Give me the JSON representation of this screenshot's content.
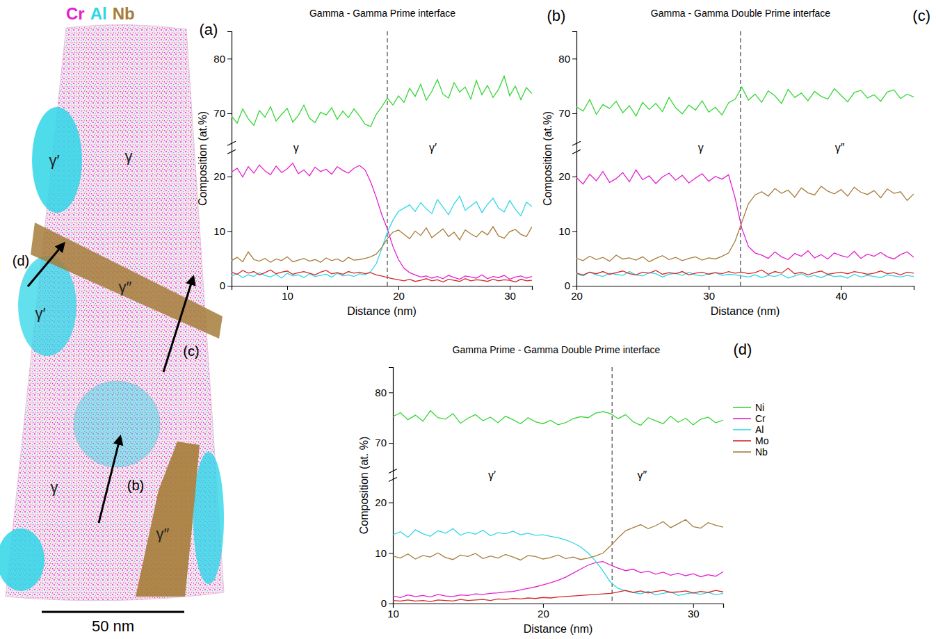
{
  "chart_data": [
    {
      "type": "line",
      "title": "Gamma - Gamma Prime interface",
      "panel": "(b)",
      "x_label": "Distance (nm)",
      "y_label": "Composition (at.%)",
      "xlim": [
        5,
        32
      ],
      "xticks": [
        10,
        20,
        30
      ],
      "ylim": [
        0,
        85
      ],
      "yticks": [
        0,
        10,
        20,
        70,
        80
      ],
      "ybreak": [
        24,
        65
      ],
      "interface": 19,
      "annotations": [
        {
          "text": "γ",
          "x": 10.8
        },
        {
          "text": "γ′",
          "x": 23.1
        }
      ],
      "x": [
        5,
        5.5,
        6,
        6.5,
        7,
        7.5,
        8,
        8.5,
        9,
        9.5,
        10,
        10.5,
        11,
        11.5,
        12,
        12.5,
        13,
        13.5,
        14,
        14.5,
        15,
        15.5,
        16,
        16.5,
        17,
        17.5,
        18,
        18.5,
        19,
        19.5,
        20,
        20.5,
        21,
        21.5,
        22,
        22.5,
        23,
        23.5,
        24,
        24.5,
        25,
        25.5,
        26,
        26.5,
        27,
        27.5,
        28,
        28.5,
        29,
        29.5,
        30,
        30.5,
        31,
        31.5,
        32
      ],
      "series": [
        {
          "color": "#36d636",
          "values": [
            69.5,
            68.2,
            70.8,
            69.0,
            67.8,
            70.5,
            69.3,
            71.2,
            68.6,
            69.8,
            70.9,
            68.4,
            69.6,
            71.5,
            69.1,
            68.3,
            70.2,
            69.7,
            71.0,
            68.9,
            70.4,
            69.2,
            70.8,
            69.5,
            68.0,
            67.6,
            69.8,
            71.2,
            72.8,
            71.5,
            73.2,
            72.0,
            74.6,
            73.1,
            75.3,
            72.4,
            74.0,
            76.2,
            73.5,
            72.8,
            75.6,
            73.9,
            74.8,
            72.6,
            76.0,
            73.4,
            75.1,
            72.9,
            74.4,
            76.8,
            73.2,
            75.0,
            72.5,
            74.7,
            73.6
          ]
        },
        {
          "color": "#e31fcf",
          "values": [
            20.8,
            21.5,
            19.9,
            21.8,
            20.6,
            22.1,
            21.0,
            20.3,
            21.9,
            20.7,
            21.4,
            22.4,
            20.5,
            21.2,
            20.1,
            21.7,
            20.9,
            21.3,
            20.4,
            21.8,
            21.1,
            20.6,
            21.5,
            22.0,
            21.2,
            19.0,
            16.2,
            13.0,
            10.4,
            7.2,
            4.8,
            3.2,
            2.4,
            2.0,
            1.6,
            1.8,
            1.4,
            1.7,
            1.3,
            1.9,
            1.5,
            1.2,
            1.8,
            1.6,
            1.4,
            2.0,
            1.3,
            1.7,
            1.5,
            1.9,
            1.2,
            1.6,
            1.8,
            1.4,
            1.7
          ]
        },
        {
          "color": "#2fd6e8",
          "values": [
            1.8,
            2.2,
            1.5,
            2.0,
            1.7,
            2.4,
            1.9,
            1.6,
            2.1,
            1.4,
            2.3,
            1.8,
            2.0,
            1.5,
            2.2,
            1.7,
            1.9,
            2.1,
            1.6,
            2.3,
            1.8,
            2.0,
            1.7,
            2.2,
            2.0,
            2.6,
            4.0,
            6.8,
            9.8,
            12.0,
            13.6,
            14.2,
            14.8,
            13.6,
            15.2,
            14.1,
            13.2,
            15.8,
            14.4,
            13.0,
            15.0,
            16.4,
            13.8,
            14.6,
            15.4,
            13.4,
            14.9,
            16.0,
            14.2,
            13.5,
            15.6,
            14.0,
            12.8,
            15.3,
            14.5
          ]
        },
        {
          "color": "#d62728",
          "values": [
            2.5,
            2.1,
            2.8,
            2.3,
            2.6,
            2.0,
            2.4,
            2.9,
            2.2,
            2.5,
            2.7,
            2.1,
            2.4,
            2.6,
            2.3,
            2.0,
            2.5,
            2.8,
            2.2,
            2.4,
            2.1,
            2.6,
            2.3,
            2.5,
            2.2,
            2.4,
            2.0,
            1.8,
            1.5,
            1.3,
            1.1,
            0.9,
            1.2,
            0.8,
            1.0,
            1.3,
            0.9,
            1.1,
            0.7,
            1.2,
            1.0,
            0.8,
            1.3,
            0.9,
            1.1,
            1.0,
            0.8,
            1.2,
            0.9,
            1.1,
            1.0,
            0.7,
            1.2,
            0.9,
            1.0
          ]
        },
        {
          "color": "#a67c39",
          "values": [
            4.6,
            5.2,
            4.4,
            6.2,
            4.8,
            4.5,
            5.0,
            4.3,
            4.9,
            4.6,
            5.3,
            4.4,
            4.7,
            5.0,
            4.5,
            4.8,
            4.3,
            5.1,
            4.6,
            4.9,
            4.4,
            5.2,
            4.7,
            4.8,
            5.0,
            5.3,
            5.8,
            7.0,
            8.6,
            9.8,
            10.2,
            9.4,
            8.6,
            10.0,
            9.2,
            10.6,
            8.8,
            9.6,
            10.4,
            9.0,
            9.8,
            8.4,
            10.2,
            9.5,
            8.9,
            10.0,
            9.3,
            10.8,
            9.1,
            8.7,
            9.9,
            10.3,
            9.4,
            9.0,
            10.8
          ]
        }
      ]
    },
    {
      "type": "line",
      "title": "Gamma - Gamma Double Prime interface",
      "panel": "(c)",
      "x_label": "Distance (nm)",
      "y_label": "Composition (at.%)",
      "xlim": [
        20,
        45.5
      ],
      "xticks": [
        20,
        30,
        40
      ],
      "ylim": [
        0,
        85
      ],
      "yticks": [
        0,
        10,
        20,
        70,
        80
      ],
      "ybreak": [
        24,
        65
      ],
      "interface": 32.4,
      "annotations": [
        {
          "text": "γ",
          "x": 29.4
        },
        {
          "text": "γ″",
          "x": 39.9
        }
      ],
      "x": [
        20,
        20.5,
        21,
        21.5,
        22,
        22.5,
        23,
        23.5,
        24,
        24.5,
        25,
        25.5,
        26,
        26.5,
        27,
        27.5,
        28,
        28.5,
        29,
        29.5,
        30,
        30.5,
        31,
        31.5,
        32,
        32.5,
        33,
        33.5,
        34,
        34.5,
        35,
        35.5,
        36,
        36.5,
        37,
        37.5,
        38,
        38.5,
        39,
        39.5,
        40,
        40.5,
        41,
        41.5,
        42,
        42.5,
        43,
        43.5,
        44,
        44.5,
        45,
        45.5
      ],
      "series": [
        {
          "color": "#36d636",
          "values": [
            71.2,
            70.4,
            72.5,
            69.8,
            71.6,
            70.9,
            72.2,
            70.1,
            71.4,
            69.5,
            72.0,
            70.7,
            71.8,
            70.3,
            72.9,
            71.0,
            69.9,
            71.5,
            70.6,
            72.3,
            70.2,
            71.1,
            69.7,
            71.9,
            72.6,
            74.8,
            72.4,
            73.5,
            72.0,
            74.1,
            73.2,
            71.8,
            74.4,
            72.9,
            73.7,
            72.3,
            74.0,
            73.1,
            72.6,
            74.5,
            73.3,
            72.1,
            73.8,
            74.2,
            72.8,
            73.4,
            72.2,
            73.9,
            74.3,
            72.7,
            73.5,
            73.0
          ]
        },
        {
          "color": "#e31fcf",
          "values": [
            19.8,
            18.6,
            20.4,
            19.2,
            20.9,
            18.9,
            19.6,
            20.7,
            19.0,
            21.2,
            19.4,
            20.1,
            18.7,
            19.9,
            20.6,
            19.3,
            20.2,
            18.8,
            19.7,
            20.5,
            19.1,
            20.0,
            19.5,
            20.3,
            16.0,
            10.5,
            7.2,
            6.0,
            5.6,
            5.0,
            6.2,
            5.3,
            4.8,
            5.9,
            5.4,
            6.4,
            5.1,
            5.7,
            4.9,
            6.0,
            5.5,
            5.2,
            6.3,
            5.0,
            5.8,
            5.4,
            6.1,
            5.3,
            4.9,
            5.7,
            6.2,
            5.2
          ]
        },
        {
          "color": "#2fd6e8",
          "values": [
            2.2,
            1.8,
            2.5,
            2.0,
            1.7,
            2.3,
            2.1,
            1.9,
            2.6,
            2.0,
            1.8,
            2.4,
            2.2,
            1.6,
            2.1,
            2.3,
            1.9,
            2.5,
            2.0,
            1.8,
            2.2,
            2.4,
            1.9,
            2.1,
            2.0,
            1.8,
            1.6,
            2.0,
            1.5,
            1.9,
            1.7,
            2.1,
            1.4,
            1.8,
            2.2,
            1.6,
            1.9,
            1.5,
            2.0,
            1.7,
            1.8,
            1.4,
            2.1,
            1.6,
            1.9,
            1.7,
            1.5,
            2.0,
            1.8,
            1.6,
            1.9,
            1.7
          ]
        },
        {
          "color": "#d62728",
          "values": [
            2.3,
            2.0,
            2.5,
            2.2,
            2.6,
            2.1,
            2.4,
            2.7,
            2.2,
            2.0,
            2.5,
            2.3,
            2.8,
            2.1,
            2.4,
            2.2,
            2.6,
            2.0,
            2.3,
            2.5,
            2.1,
            2.4,
            2.2,
            2.6,
            2.3,
            2.5,
            2.2,
            2.4,
            2.9,
            2.1,
            2.6,
            2.3,
            3.2,
            2.2,
            2.5,
            2.0,
            2.4,
            2.7,
            2.1,
            2.3,
            2.5,
            2.2,
            2.6,
            2.4,
            2.1,
            2.3,
            2.7,
            2.2,
            2.4,
            2.0,
            2.5,
            2.3
          ]
        },
        {
          "color": "#a67c39",
          "values": [
            5.0,
            4.6,
            5.4,
            4.8,
            5.2,
            4.5,
            5.6,
            4.9,
            5.1,
            4.7,
            5.3,
            4.4,
            5.0,
            5.5,
            4.8,
            5.2,
            4.6,
            5.0,
            5.3,
            4.7,
            5.1,
            4.9,
            5.4,
            6.0,
            8.2,
            11.6,
            15.0,
            16.6,
            17.2,
            16.4,
            17.8,
            16.9,
            17.5,
            16.2,
            17.9,
            17.0,
            16.6,
            18.2,
            17.3,
            16.8,
            17.6,
            16.4,
            18.0,
            17.1,
            16.7,
            17.4,
            16.1,
            17.7,
            16.9,
            17.2,
            15.6,
            16.8
          ]
        }
      ]
    },
    {
      "type": "line",
      "title": "Gamma Prime - Gamma Double Prime interface",
      "panel": "(d)",
      "x_label": "Distance (nm)",
      "y_label": "Composition (at. %)",
      "xlim": [
        10,
        32
      ],
      "xticks": [
        10,
        20,
        30
      ],
      "ylim": [
        0,
        85
      ],
      "yticks": [
        0,
        10,
        20,
        70,
        80
      ],
      "ybreak": [
        24,
        65
      ],
      "interface": 24.6,
      "legend": "right",
      "annotations": [
        {
          "text": "γ′",
          "x": 16.6
        },
        {
          "text": "γ″",
          "x": 26.6
        }
      ],
      "x": [
        10,
        10.5,
        11,
        11.5,
        12,
        12.5,
        13,
        13.5,
        14,
        14.5,
        15,
        15.5,
        16,
        16.5,
        17,
        17.5,
        18,
        18.5,
        19,
        19.5,
        20,
        20.5,
        21,
        21.5,
        22,
        22.5,
        23,
        23.5,
        24,
        24.5,
        25,
        25.5,
        26,
        26.5,
        27,
        27.5,
        28,
        28.5,
        29,
        29.5,
        30,
        30.5,
        31,
        31.5,
        32
      ],
      "series": [
        {
          "name": "Ni",
          "color": "#36d636",
          "values": [
            75.2,
            76.0,
            74.6,
            75.5,
            74.3,
            76.4,
            75.0,
            74.7,
            75.8,
            73.9,
            74.9,
            75.6,
            74.4,
            75.1,
            74.0,
            75.3,
            74.6,
            73.8,
            75.0,
            74.2,
            73.8,
            74.5,
            73.6,
            74.0,
            74.8,
            75.2,
            75.0,
            75.9,
            76.2,
            75.8,
            74.8,
            75.6,
            74.2,
            73.5,
            75.0,
            74.4,
            73.8,
            75.3,
            74.1,
            74.9,
            73.6,
            74.7,
            75.1,
            74.0,
            74.5
          ]
        },
        {
          "name": "Cr",
          "color": "#e31fcf",
          "values": [
            1.5,
            1.2,
            1.7,
            1.4,
            1.6,
            1.3,
            1.8,
            1.5,
            1.4,
            1.7,
            1.6,
            1.9,
            1.8,
            2.0,
            2.1,
            2.3,
            2.4,
            2.7,
            3.0,
            3.3,
            3.7,
            4.1,
            4.6,
            5.2,
            6.0,
            6.8,
            7.6,
            8.1,
            8.3,
            7.6,
            7.0,
            6.5,
            6.8,
            6.1,
            6.4,
            5.8,
            6.2,
            5.6,
            6.0,
            5.5,
            5.9,
            5.3,
            5.7,
            5.4,
            6.3
          ]
        },
        {
          "name": "Al",
          "color": "#2fd6e8",
          "values": [
            13.6,
            14.2,
            13.1,
            14.6,
            13.8,
            13.3,
            14.4,
            13.9,
            14.8,
            13.5,
            14.1,
            13.7,
            14.5,
            13.4,
            14.0,
            13.8,
            14.3,
            13.6,
            13.9,
            13.5,
            13.6,
            13.3,
            13.0,
            12.6,
            12.0,
            11.2,
            10.0,
            8.4,
            6.4,
            4.2,
            3.0,
            2.5,
            2.2,
            1.9,
            2.4,
            1.7,
            2.0,
            2.3,
            1.6,
            1.9,
            2.1,
            1.8,
            2.2,
            1.7,
            2.0
          ]
        },
        {
          "name": "Mo",
          "color": "#d62728",
          "values": [
            0.6,
            0.5,
            0.7,
            0.5,
            0.6,
            0.4,
            0.7,
            0.6,
            0.5,
            0.8,
            0.6,
            0.7,
            0.8,
            0.6,
            0.9,
            0.8,
            1.0,
            0.9,
            1.1,
            1.0,
            1.2,
            1.1,
            1.3,
            1.4,
            1.5,
            1.6,
            1.7,
            1.8,
            1.9,
            2.0,
            2.3,
            2.6,
            2.2,
            2.5,
            2.1,
            2.4,
            2.6,
            2.2,
            2.3,
            2.5,
            2.1,
            2.4,
            2.2,
            2.6,
            2.3
          ]
        },
        {
          "name": "Nb",
          "color": "#a67c39",
          "values": [
            9.4,
            9.0,
            9.8,
            8.8,
            9.5,
            9.2,
            10.0,
            9.1,
            8.7,
            9.6,
            9.3,
            9.9,
            8.9,
            9.4,
            9.0,
            9.7,
            9.2,
            8.6,
            9.5,
            9.3,
            8.8,
            9.1,
            9.6,
            8.9,
            9.2,
            8.7,
            9.0,
            9.4,
            10.0,
            11.4,
            13.0,
            14.4,
            15.0,
            15.6,
            14.8,
            15.4,
            16.2,
            15.0,
            15.8,
            16.6,
            15.2,
            14.9,
            16.0,
            15.5,
            15.1
          ]
        }
      ]
    }
  ],
  "reconstruction": {
    "panel": "(a)",
    "title": [
      {
        "text": "Cr",
        "color": "#e31fcf"
      },
      {
        "text": "Al",
        "color": "#2fd6e8"
      },
      {
        "text": "Nb",
        "color": "#a67c39"
      }
    ],
    "regions": [
      {
        "text": "γ′"
      },
      {
        "text": "γ"
      },
      {
        "text": "γ″"
      },
      {
        "text": "γ′"
      },
      {
        "text": "γ"
      },
      {
        "text": "γ″"
      }
    ],
    "arrows": [
      {
        "label": "(d)"
      },
      {
        "label": "(c)"
      },
      {
        "label": "(b)"
      }
    ],
    "scale_bar": {
      "value": 50,
      "label": "50 nm"
    }
  }
}
